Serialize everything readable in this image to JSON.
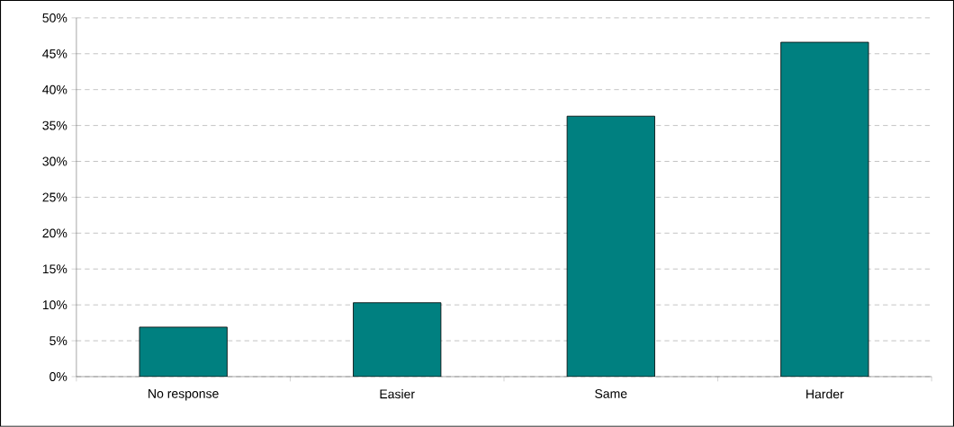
{
  "chart_data": {
    "type": "bar",
    "categories": [
      "No response",
      "Easier",
      "Same",
      "Harder"
    ],
    "values": [
      6.9,
      10.3,
      36.3,
      46.6
    ],
    "color": "#008080",
    "ylim": [
      0,
      50
    ],
    "yticks": [
      {
        "value": 0,
        "label": "0%"
      },
      {
        "value": 5,
        "label": "5%"
      },
      {
        "value": 10,
        "label": "10%"
      },
      {
        "value": 15,
        "label": "15%"
      },
      {
        "value": 20,
        "label": "20%"
      },
      {
        "value": 25,
        "label": "25%"
      },
      {
        "value": 30,
        "label": "30%"
      },
      {
        "value": 35,
        "label": "35%"
      },
      {
        "value": 40,
        "label": "40%"
      },
      {
        "value": 45,
        "label": "45%"
      },
      {
        "value": 50,
        "label": "50%"
      }
    ],
    "grid": "y"
  }
}
